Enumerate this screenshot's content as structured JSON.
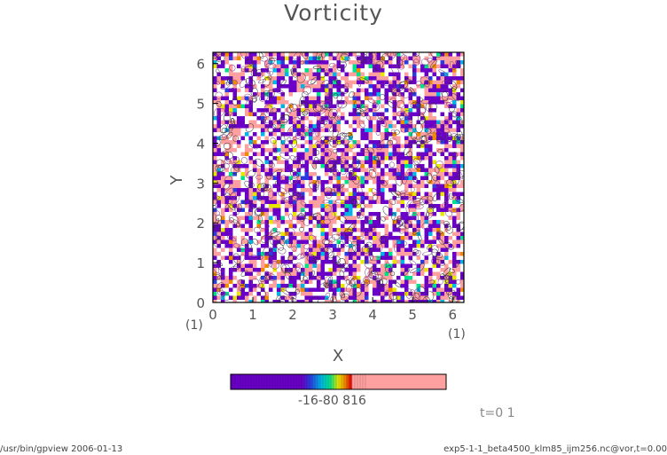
{
  "chart_data": {
    "type": "heatmap",
    "title": "Vorticity",
    "xlabel": "X",
    "ylabel": "Y",
    "xlim": [
      0,
      6.2832
    ],
    "ylim": [
      0,
      6.2832
    ],
    "x_ticks": [
      "0",
      "1",
      "2",
      "3",
      "4",
      "5",
      "6"
    ],
    "y_ticks": [
      "0",
      "1",
      "2",
      "3",
      "4",
      "5",
      "6"
    ],
    "x_unit_label": "(1)",
    "y_unit_label": "(1)",
    "colorbar": {
      "labels": [
        "-16",
        "-8",
        "0",
        "8",
        "16"
      ],
      "label_text": "-16-80 816",
      "colors": [
        "#6a00c8",
        "#2a3ce0",
        "#00b4e6",
        "#00e08c",
        "#e6e600",
        "#f08a00",
        "#e00000",
        "#ffa0a0"
      ]
    }
  },
  "time_label": "t=0 1",
  "footer_left": "/usr/bin/gpview   2006-01-13",
  "footer_right": "exp5-1-1_beta4500_klm85_ijm256.nc@vor,t=0.00"
}
